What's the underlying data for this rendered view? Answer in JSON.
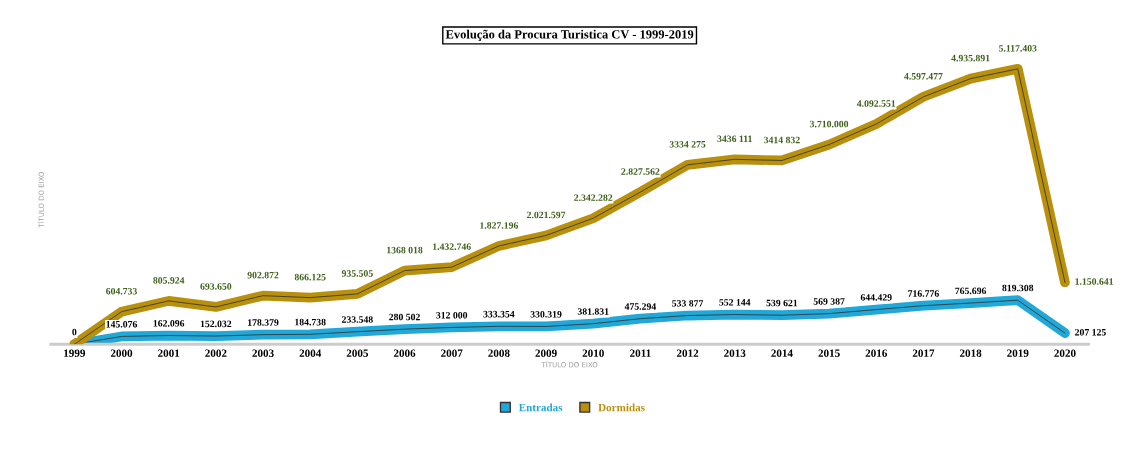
{
  "chart_data": {
    "type": "line",
    "title": "Evolução da Procura Turistica CV - 1999-2019",
    "xlabel": "TÍTULO DO EIXO",
    "ylabel": "TÍTULO DO EIXO",
    "categories": [
      "1999",
      "2000",
      "2001",
      "2002",
      "2003",
      "2004",
      "2005",
      "2006",
      "2007",
      "2008",
      "2009",
      "2010",
      "2011",
      "2012",
      "2013",
      "2014",
      "2015",
      "2016",
      "2017",
      "2018",
      "2019",
      "2020"
    ],
    "series": [
      {
        "name": "Entradas",
        "color": "#1fa8d8",
        "values": [
          0,
          145076,
          162096,
          152032,
          178379,
          184738,
          233548,
          280502,
          312000,
          333354,
          330319,
          381831,
          475294,
          533877,
          552144,
          539621,
          569387,
          644429,
          716776,
          765696,
          819308,
          207125
        ],
        "value_labels": [
          "0",
          "145.076",
          "162.096",
          "152.032",
          "178.379",
          "184.738",
          "233.548",
          "280 502",
          "312 000",
          "333.354",
          "330.319",
          "381.831",
          "475.294",
          "533 877",
          "552 144",
          "539 621",
          "569 387",
          "644.429",
          "716.776",
          "765.696",
          "819.308",
          "207 125"
        ]
      },
      {
        "name": "Dormidas",
        "color": "#b8900c",
        "values": [
          0,
          604733,
          805924,
          693650,
          902872,
          866125,
          935505,
          1368018,
          1432746,
          1827196,
          2021597,
          2342282,
          2827562,
          3334275,
          3436111,
          3414832,
          3710000,
          4092551,
          4597477,
          4935891,
          5117403,
          1150641
        ],
        "value_labels": [
          null,
          "604.733",
          "805.924",
          "693.650",
          "902.872",
          "866.125",
          "935.505",
          "1368 018",
          "1.432.746",
          "1.827.196",
          "2.021.597",
          "2.342.282",
          "2.827.562",
          "3334 275",
          "3436 111",
          "3414 832",
          "3.710.000",
          "4.092.551",
          "4.597.477",
          "4.935.891",
          "5.117.403",
          "1.150.641"
        ]
      }
    ],
    "legend": "bottom",
    "grid": false,
    "marker": "none",
    "line_style": "solid"
  }
}
